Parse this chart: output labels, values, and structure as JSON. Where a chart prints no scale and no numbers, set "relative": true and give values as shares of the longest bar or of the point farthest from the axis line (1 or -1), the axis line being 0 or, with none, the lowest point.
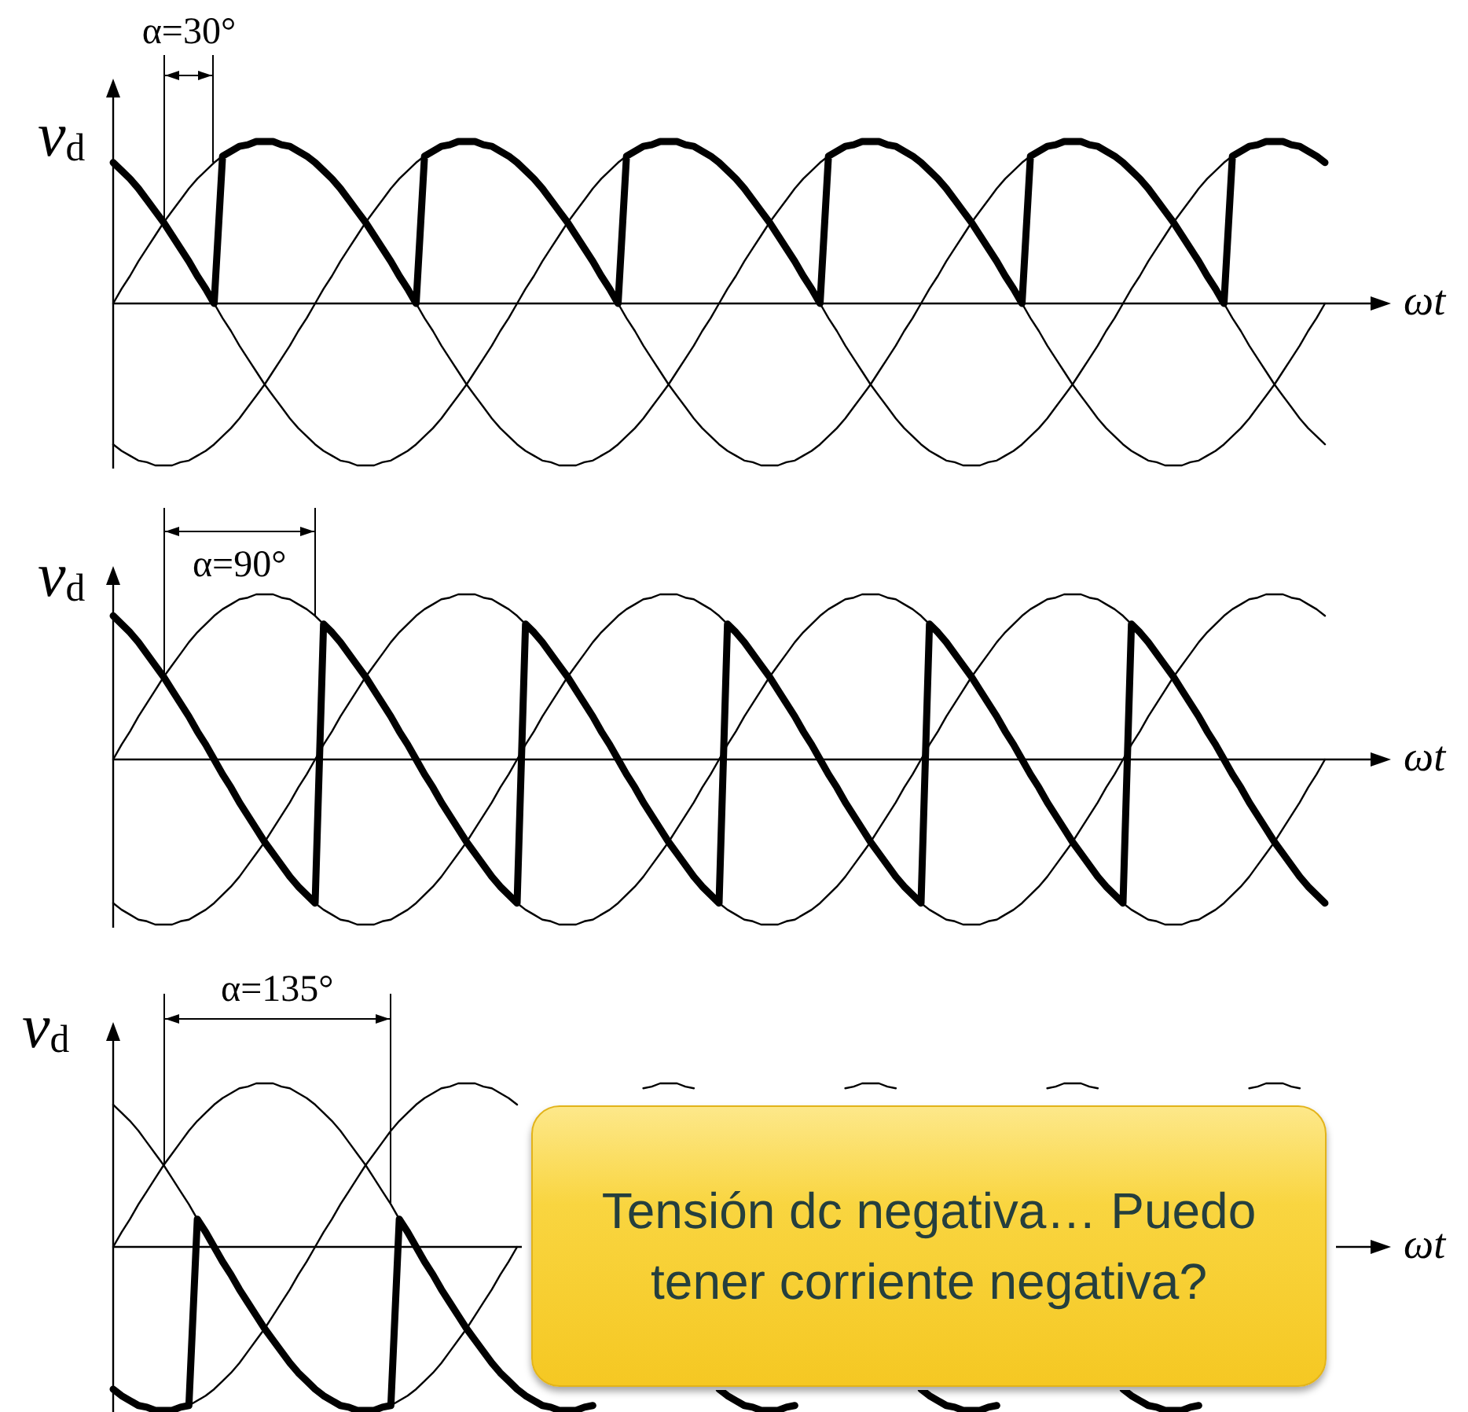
{
  "chart_data": [
    {
      "type": "line",
      "relative": true,
      "tick_labels": false,
      "xlabel": "ωt",
      "ylabel": "v$_{d}$",
      "annotations": [
        "α=30°"
      ],
      "categories": [
        null,
        null,
        null,
        null,
        null,
        null,
        null,
        null,
        null,
        null,
        null,
        null,
        null,
        null,
        null,
        null,
        null,
        null,
        null,
        null,
        null,
        null,
        null,
        null,
        null,
        null,
        null,
        null,
        null,
        null,
        null,
        null,
        null,
        null,
        null,
        null,
        null,
        null,
        null,
        null,
        null,
        null,
        null,
        null,
        null,
        null,
        null,
        null,
        null,
        null,
        null,
        null,
        null,
        null,
        null,
        null,
        null,
        null,
        null,
        null,
        null,
        null,
        null,
        null,
        null,
        null,
        null,
        null,
        null,
        null,
        null,
        null,
        null,
        null,
        null,
        null,
        null,
        null,
        null,
        null,
        null,
        null,
        null,
        null,
        null,
        null,
        null,
        null,
        null,
        null,
        null,
        null,
        null,
        null,
        null,
        null,
        null,
        null,
        null,
        null,
        null,
        null,
        null,
        null,
        null,
        null,
        null,
        null,
        null,
        null,
        null,
        null,
        null,
        null,
        null,
        null,
        null,
        null,
        null,
        null,
        null,
        null,
        null,
        null,
        null,
        null,
        null,
        null,
        null,
        null,
        null,
        null,
        null,
        null,
        null,
        null,
        null,
        null,
        null,
        null,
        null,
        null,
        null,
        null,
        null
      ],
      "series": [
        {
          "color": "#000000",
          "values": [
            0.87,
            0.82,
            0.77,
            0.71,
            0.64,
            0.57,
            0.5,
            0.42,
            0.34,
            0.26,
            0.17,
            0.09,
            0,
            0.91,
            0.94,
            0.97,
            0.98,
            1,
            1,
            1,
            0.98,
            0.97,
            0.94,
            0.91,
            0.87,
            0.82,
            0.77,
            0.71,
            0.64,
            0.57,
            0.5,
            0.42,
            0.34,
            0.26,
            0.17,
            0.09,
            0,
            0.91,
            0.94,
            0.97,
            0.98,
            1,
            1,
            1,
            0.98,
            0.97,
            0.94,
            0.91,
            0.87,
            0.82,
            0.77,
            0.71,
            0.64,
            0.57,
            0.5,
            0.42,
            0.34,
            0.26,
            0.17,
            0.09,
            0,
            0.91,
            0.94,
            0.97,
            0.98,
            1,
            1,
            1,
            0.98,
            0.97,
            0.94,
            0.91,
            0.87,
            0.82,
            0.77,
            0.71,
            0.64,
            0.57,
            0.5,
            0.42,
            0.34,
            0.26,
            0.17,
            0.09,
            0,
            0.91,
            0.94,
            0.97,
            0.98,
            1,
            1,
            1,
            0.98,
            0.97,
            0.94,
            0.91,
            0.87,
            0.82,
            0.77,
            0.71,
            0.64,
            0.57,
            0.5,
            0.42,
            0.34,
            0.26,
            0.17,
            0.09,
            0,
            0.91,
            0.94,
            0.97,
            0.98,
            1,
            1,
            1,
            0.98,
            0.97,
            0.94,
            0.91,
            0.87,
            0.82,
            0.77,
            0.71,
            0.64,
            0.57,
            0.5,
            0.42,
            0.34,
            0.26,
            0.17,
            0.09,
            0,
            0.91,
            0.94,
            0.97,
            0.98,
            1,
            1,
            1,
            0.98,
            0.97,
            0.94,
            0.91,
            0.87
          ]
        },
        {
          "color": "#000000",
          "values": [
            0,
            0.09,
            0.17,
            0.26,
            0.34,
            0.42,
            0.5,
            0.57,
            0.64,
            0.71,
            0.77,
            0.82,
            0.87,
            0.91,
            0.94,
            0.97,
            0.98,
            1,
            1,
            1,
            0.98,
            0.97,
            0.94,
            0.91,
            0.87,
            0.82,
            0.77,
            0.71,
            0.64,
            0.57,
            0.5,
            0.42,
            0.34,
            0.26,
            0.17,
            0.09,
            0,
            -0.09,
            -0.17,
            -0.26,
            -0.34,
            -0.42,
            -0.5,
            -0.57,
            -0.64,
            -0.71,
            -0.77,
            -0.82,
            -0.87,
            -0.91,
            -0.94,
            -0.97,
            -0.98,
            -1,
            -1,
            -1,
            -0.98,
            -0.97,
            -0.94,
            -0.91,
            -0.87,
            -0.82,
            -0.77,
            -0.71,
            -0.64,
            -0.57,
            -0.5,
            -0.42,
            -0.34,
            -0.26,
            -0.17,
            -0.09,
            0,
            0.09,
            0.17,
            0.26,
            0.34,
            0.42,
            0.5,
            0.57,
            0.64,
            0.71,
            0.77,
            0.82,
            0.87,
            0.91,
            0.94,
            0.97,
            0.98,
            1,
            1,
            1,
            0.98,
            0.97,
            0.94,
            0.91,
            0.87,
            0.82,
            0.77,
            0.71,
            0.64,
            0.57,
            0.5,
            0.42,
            0.34,
            0.26,
            0.17,
            0.09,
            0,
            -0.09,
            -0.17,
            -0.26,
            -0.34,
            -0.42,
            -0.5,
            -0.57,
            -0.64,
            -0.71,
            -0.77,
            -0.82,
            -0.87,
            -0.91,
            -0.94,
            -0.97,
            -0.98,
            -1,
            -1,
            -1,
            -0.98,
            -0.97,
            -0.94,
            -0.91,
            -0.87,
            -0.82,
            -0.77,
            -0.71,
            -0.64,
            -0.57,
            -0.5,
            -0.42,
            -0.34,
            -0.26,
            -0.17,
            -0.09,
            0
          ]
        },
        {
          "color": "#000000",
          "values": [
            -0.87,
            -0.91,
            -0.94,
            -0.97,
            -0.98,
            -1,
            -1,
            -1,
            -0.98,
            -0.97,
            -0.94,
            -0.91,
            -0.87,
            -0.82,
            -0.77,
            -0.71,
            -0.64,
            -0.57,
            -0.5,
            -0.42,
            -0.34,
            -0.26,
            -0.17,
            -0.09,
            0,
            0.09,
            0.17,
            0.26,
            0.34,
            0.42,
            0.5,
            0.57,
            0.64,
            0.71,
            0.77,
            0.82,
            0.87,
            0.91,
            0.94,
            0.97,
            0.98,
            1,
            1,
            1,
            0.98,
            0.97,
            0.94,
            0.91,
            0.87,
            0.82,
            0.77,
            0.71,
            0.64,
            0.57,
            0.5,
            0.42,
            0.34,
            0.26,
            0.17,
            0.09,
            0,
            -0.09,
            -0.17,
            -0.26,
            -0.34,
            -0.42,
            -0.5,
            -0.57,
            -0.64,
            -0.71,
            -0.77,
            -0.82,
            -0.87,
            -0.91,
            -0.94,
            -0.97,
            -0.98,
            -1,
            -1,
            -1,
            -0.98,
            -0.97,
            -0.94,
            -0.91,
            -0.87,
            -0.82,
            -0.77,
            -0.71,
            -0.64,
            -0.57,
            -0.5,
            -0.42,
            -0.34,
            -0.26,
            -0.17,
            -0.09,
            0,
            0.09,
            0.17,
            0.26,
            0.34,
            0.42,
            0.5,
            0.57,
            0.64,
            0.71,
            0.77,
            0.82,
            0.87,
            0.91,
            0.94,
            0.97,
            0.98,
            1,
            1,
            1,
            0.98,
            0.97,
            0.94,
            0.91,
            0.87,
            0.82,
            0.77,
            0.71,
            0.64,
            0.57,
            0.5,
            0.42,
            0.34,
            0.26,
            0.17,
            0.09,
            0,
            -0.09,
            -0.17,
            -0.26,
            -0.34,
            -0.42,
            -0.5,
            -0.57,
            -0.64,
            -0.71,
            -0.77,
            -0.82,
            -0.87
          ]
        },
        {
          "color": "#000000",
          "values": [
            0.87,
            0.82,
            0.77,
            0.71,
            0.64,
            0.57,
            0.5,
            0.42,
            0.34,
            0.26,
            0.17,
            0.09,
            0,
            -0.09,
            -0.17,
            -0.26,
            -0.34,
            -0.42,
            -0.5,
            -0.57,
            -0.64,
            -0.71,
            -0.77,
            -0.82,
            -0.87,
            -0.91,
            -0.94,
            -0.97,
            -0.98,
            -1,
            -1,
            -1,
            -0.98,
            -0.97,
            -0.94,
            -0.91,
            -0.87,
            -0.82,
            -0.77,
            -0.71,
            -0.64,
            -0.57,
            -0.5,
            -0.42,
            -0.34,
            -0.26,
            -0.17,
            -0.09,
            0,
            0.09,
            0.17,
            0.26,
            0.34,
            0.42,
            0.5,
            0.57,
            0.64,
            0.71,
            0.77,
            0.82,
            0.87,
            0.91,
            0.94,
            0.97,
            0.98,
            1,
            1,
            1,
            0.98,
            0.97,
            0.94,
            0.91,
            0.87,
            0.82,
            0.77,
            0.71,
            0.64,
            0.57,
            0.5,
            0.42,
            0.34,
            0.26,
            0.17,
            0.09,
            0,
            -0.09,
            -0.17,
            -0.26,
            -0.34,
            -0.42,
            -0.5,
            -0.57,
            -0.64,
            -0.71,
            -0.77,
            -0.82,
            -0.87,
            -0.91,
            -0.94,
            -0.97,
            -0.98,
            -1,
            -1,
            -1,
            -0.98,
            -0.97,
            -0.94,
            -0.91,
            -0.87,
            -0.82,
            -0.77,
            -0.71,
            -0.64,
            -0.57,
            -0.5,
            -0.42,
            -0.34,
            -0.26,
            -0.17,
            -0.09,
            0,
            0.09,
            0.17,
            0.26,
            0.34,
            0.42,
            0.5,
            0.57,
            0.64,
            0.71,
            0.77,
            0.82,
            0.87,
            0.91,
            0.94,
            0.97,
            0.98,
            1,
            1,
            1,
            0.98,
            0.97,
            0.94,
            0.91,
            0.87
          ]
        }
      ]
    },
    {
      "type": "line",
      "relative": true,
      "tick_labels": false,
      "xlabel": "ωt",
      "ylabel": "v$_{d}$",
      "annotations": [
        "α=90°"
      ],
      "categories": [
        null,
        null,
        null,
        null,
        null,
        null,
        null,
        null,
        null,
        null,
        null,
        null,
        null,
        null,
        null,
        null,
        null,
        null,
        null,
        null,
        null,
        null,
        null,
        null,
        null,
        null,
        null,
        null,
        null,
        null,
        null,
        null,
        null,
        null,
        null,
        null,
        null,
        null,
        null,
        null,
        null,
        null,
        null,
        null,
        null,
        null,
        null,
        null,
        null,
        null,
        null,
        null,
        null,
        null,
        null,
        null,
        null,
        null,
        null,
        null,
        null,
        null,
        null,
        null,
        null,
        null,
        null,
        null,
        null,
        null,
        null,
        null,
        null,
        null,
        null,
        null,
        null,
        null,
        null,
        null,
        null,
        null,
        null,
        null,
        null,
        null,
        null,
        null,
        null,
        null,
        null,
        null,
        null,
        null,
        null,
        null,
        null,
        null,
        null,
        null,
        null,
        null,
        null,
        null,
        null,
        null,
        null,
        null,
        null,
        null,
        null,
        null,
        null,
        null,
        null,
        null,
        null,
        null,
        null,
        null,
        null,
        null,
        null,
        null,
        null,
        null,
        null,
        null,
        null,
        null,
        null,
        null,
        null,
        null,
        null,
        null,
        null,
        null,
        null,
        null,
        null,
        null,
        null,
        null,
        null
      ],
      "series": [
        {
          "color": "#000000",
          "values": [
            0.87,
            0.82,
            0.77,
            0.71,
            0.64,
            0.57,
            0.5,
            0.42,
            0.34,
            0.26,
            0.17,
            0.09,
            0,
            -0.09,
            -0.17,
            -0.26,
            -0.34,
            -0.42,
            -0.5,
            -0.57,
            -0.64,
            -0.71,
            -0.77,
            -0.82,
            -0.87,
            0.82,
            0.77,
            0.71,
            0.64,
            0.57,
            0.5,
            0.42,
            0.34,
            0.26,
            0.17,
            0.09,
            0,
            -0.09,
            -0.17,
            -0.26,
            -0.34,
            -0.42,
            -0.5,
            -0.57,
            -0.64,
            -0.71,
            -0.77,
            -0.82,
            -0.87,
            0.82,
            0.77,
            0.71,
            0.64,
            0.57,
            0.5,
            0.42,
            0.34,
            0.26,
            0.17,
            0.09,
            0,
            -0.09,
            -0.17,
            -0.26,
            -0.34,
            -0.42,
            -0.5,
            -0.57,
            -0.64,
            -0.71,
            -0.77,
            -0.82,
            -0.87,
            0.82,
            0.77,
            0.71,
            0.64,
            0.57,
            0.5,
            0.42,
            0.34,
            0.26,
            0.17,
            0.09,
            0,
            -0.09,
            -0.17,
            -0.26,
            -0.34,
            -0.42,
            -0.5,
            -0.57,
            -0.64,
            -0.71,
            -0.77,
            -0.82,
            -0.87,
            0.82,
            0.77,
            0.71,
            0.64,
            0.57,
            0.5,
            0.42,
            0.34,
            0.26,
            0.17,
            0.09,
            0,
            -0.09,
            -0.17,
            -0.26,
            -0.34,
            -0.42,
            -0.5,
            -0.57,
            -0.64,
            -0.71,
            -0.77,
            -0.82,
            -0.87,
            0.82,
            0.77,
            0.71,
            0.64,
            0.57,
            0.5,
            0.42,
            0.34,
            0.26,
            0.17,
            0.09,
            0,
            -0.09,
            -0.17,
            -0.26,
            -0.34,
            -0.42,
            -0.5,
            -0.57,
            -0.64,
            -0.71,
            -0.77,
            -0.82,
            -0.87
          ]
        },
        {
          "color": "#000000",
          "values": [
            0,
            0.09,
            0.17,
            0.26,
            0.34,
            0.42,
            0.5,
            0.57,
            0.64,
            0.71,
            0.77,
            0.82,
            0.87,
            0.91,
            0.94,
            0.97,
            0.98,
            1,
            1,
            1,
            0.98,
            0.97,
            0.94,
            0.91,
            0.87,
            0.82,
            0.77,
            0.71,
            0.64,
            0.57,
            0.5,
            0.42,
            0.34,
            0.26,
            0.17,
            0.09,
            0,
            -0.09,
            -0.17,
            -0.26,
            -0.34,
            -0.42,
            -0.5,
            -0.57,
            -0.64,
            -0.71,
            -0.77,
            -0.82,
            -0.87,
            -0.91,
            -0.94,
            -0.97,
            -0.98,
            -1,
            -1,
            -1,
            -0.98,
            -0.97,
            -0.94,
            -0.91,
            -0.87,
            -0.82,
            -0.77,
            -0.71,
            -0.64,
            -0.57,
            -0.5,
            -0.42,
            -0.34,
            -0.26,
            -0.17,
            -0.09,
            0,
            0.09,
            0.17,
            0.26,
            0.34,
            0.42,
            0.5,
            0.57,
            0.64,
            0.71,
            0.77,
            0.82,
            0.87,
            0.91,
            0.94,
            0.97,
            0.98,
            1,
            1,
            1,
            0.98,
            0.97,
            0.94,
            0.91,
            0.87,
            0.82,
            0.77,
            0.71,
            0.64,
            0.57,
            0.5,
            0.42,
            0.34,
            0.26,
            0.17,
            0.09,
            0,
            -0.09,
            -0.17,
            -0.26,
            -0.34,
            -0.42,
            -0.5,
            -0.57,
            -0.64,
            -0.71,
            -0.77,
            -0.82,
            -0.87,
            -0.91,
            -0.94,
            -0.97,
            -0.98,
            -1,
            -1,
            -1,
            -0.98,
            -0.97,
            -0.94,
            -0.91,
            -0.87,
            -0.82,
            -0.77,
            -0.71,
            -0.64,
            -0.57,
            -0.5,
            -0.42,
            -0.34,
            -0.26,
            -0.17,
            -0.09,
            0
          ]
        },
        {
          "color": "#000000",
          "values": [
            -0.87,
            -0.91,
            -0.94,
            -0.97,
            -0.98,
            -1,
            -1,
            -1,
            -0.98,
            -0.97,
            -0.94,
            -0.91,
            -0.87,
            -0.82,
            -0.77,
            -0.71,
            -0.64,
            -0.57,
            -0.5,
            -0.42,
            -0.34,
            -0.26,
            -0.17,
            -0.09,
            0,
            0.09,
            0.17,
            0.26,
            0.34,
            0.42,
            0.5,
            0.57,
            0.64,
            0.71,
            0.77,
            0.82,
            0.87,
            0.91,
            0.94,
            0.97,
            0.98,
            1,
            1,
            1,
            0.98,
            0.97,
            0.94,
            0.91,
            0.87,
            0.82,
            0.77,
            0.71,
            0.64,
            0.57,
            0.5,
            0.42,
            0.34,
            0.26,
            0.17,
            0.09,
            0,
            -0.09,
            -0.17,
            -0.26,
            -0.34,
            -0.42,
            -0.5,
            -0.57,
            -0.64,
            -0.71,
            -0.77,
            -0.82,
            -0.87,
            -0.91,
            -0.94,
            -0.97,
            -0.98,
            -1,
            -1,
            -1,
            -0.98,
            -0.97,
            -0.94,
            -0.91,
            -0.87,
            -0.82,
            -0.77,
            -0.71,
            -0.64,
            -0.57,
            -0.5,
            -0.42,
            -0.34,
            -0.26,
            -0.17,
            -0.09,
            0,
            0.09,
            0.17,
            0.26,
            0.34,
            0.42,
            0.5,
            0.57,
            0.64,
            0.71,
            0.77,
            0.82,
            0.87,
            0.91,
            0.94,
            0.97,
            0.98,
            1,
            1,
            1,
            0.98,
            0.97,
            0.94,
            0.91,
            0.87,
            0.82,
            0.77,
            0.71,
            0.64,
            0.57,
            0.5,
            0.42,
            0.34,
            0.26,
            0.17,
            0.09,
            0,
            -0.09,
            -0.17,
            -0.26,
            -0.34,
            -0.42,
            -0.5,
            -0.57,
            -0.64,
            -0.71,
            -0.77,
            -0.82,
            -0.87
          ]
        },
        {
          "color": "#000000",
          "values": [
            0.87,
            0.82,
            0.77,
            0.71,
            0.64,
            0.57,
            0.5,
            0.42,
            0.34,
            0.26,
            0.17,
            0.09,
            0,
            -0.09,
            -0.17,
            -0.26,
            -0.34,
            -0.42,
            -0.5,
            -0.57,
            -0.64,
            -0.71,
            -0.77,
            -0.82,
            -0.87,
            -0.91,
            -0.94,
            -0.97,
            -0.98,
            -1,
            -1,
            -1,
            -0.98,
            -0.97,
            -0.94,
            -0.91,
            -0.87,
            -0.82,
            -0.77,
            -0.71,
            -0.64,
            -0.57,
            -0.5,
            -0.42,
            -0.34,
            -0.26,
            -0.17,
            -0.09,
            0,
            0.09,
            0.17,
            0.26,
            0.34,
            0.42,
            0.5,
            0.57,
            0.64,
            0.71,
            0.77,
            0.82,
            0.87,
            0.91,
            0.94,
            0.97,
            0.98,
            1,
            1,
            1,
            0.98,
            0.97,
            0.94,
            0.91,
            0.87,
            0.82,
            0.77,
            0.71,
            0.64,
            0.57,
            0.5,
            0.42,
            0.34,
            0.26,
            0.17,
            0.09,
            0,
            -0.09,
            -0.17,
            -0.26,
            -0.34,
            -0.42,
            -0.5,
            -0.57,
            -0.64,
            -0.71,
            -0.77,
            -0.82,
            -0.87,
            -0.91,
            -0.94,
            -0.97,
            -0.98,
            -1,
            -1,
            -1,
            -0.98,
            -0.97,
            -0.94,
            -0.91,
            -0.87,
            -0.82,
            -0.77,
            -0.71,
            -0.64,
            -0.57,
            -0.5,
            -0.42,
            -0.34,
            -0.26,
            -0.17,
            -0.09,
            0,
            0.09,
            0.17,
            0.26,
            0.34,
            0.42,
            0.5,
            0.57,
            0.64,
            0.71,
            0.77,
            0.82,
            0.87,
            0.91,
            0.94,
            0.97,
            0.98,
            1,
            1,
            1,
            0.98,
            0.97,
            0.94,
            0.91,
            0.87
          ]
        }
      ]
    },
    {
      "type": "line",
      "relative": true,
      "tick_labels": false,
      "xlabel": "ωt",
      "ylabel": "v$_{d}$",
      "annotations": [
        "α=135°",
        "Tensión dc negativa… Puedo tener corriente negativa?"
      ],
      "categories": [
        null,
        null,
        null,
        null,
        null,
        null,
        null,
        null,
        null,
        null,
        null,
        null,
        null,
        null,
        null,
        null,
        null,
        null,
        null,
        null,
        null,
        null,
        null,
        null,
        null,
        null,
        null,
        null,
        null,
        null,
        null,
        null,
        null,
        null,
        null,
        null,
        null,
        null,
        null,
        null,
        null,
        null,
        null,
        null,
        null,
        null,
        null,
        null,
        null,
        null,
        null,
        null,
        null,
        null,
        null,
        null,
        null,
        null,
        null,
        null,
        null,
        null,
        null,
        null,
        null,
        null,
        null,
        null,
        null,
        null,
        null,
        null,
        null,
        null,
        null,
        null,
        null,
        null,
        null,
        null,
        null,
        null,
        null,
        null,
        null,
        null,
        null,
        null,
        null,
        null,
        null,
        null,
        null,
        null,
        null,
        null,
        null,
        null,
        null,
        null,
        null,
        null,
        null,
        null,
        null,
        null,
        null,
        null,
        null,
        null,
        null,
        null,
        null,
        null,
        null,
        null,
        null,
        null,
        null,
        null,
        null,
        null,
        null,
        null,
        null,
        null,
        null,
        null,
        null,
        null,
        null,
        null,
        null,
        null,
        null,
        null,
        null,
        null,
        null,
        null,
        null,
        null,
        null,
        null,
        null
      ],
      "series": [
        {
          "color": "#000000",
          "values": [
            -0.87,
            -0.91,
            -0.94,
            -0.97,
            -0.98,
            -1,
            -1,
            -1,
            -0.98,
            -0.97,
            0.17,
            0.09,
            0,
            -0.09,
            -0.17,
            -0.26,
            -0.34,
            -0.42,
            -0.5,
            -0.57,
            -0.64,
            -0.71,
            -0.77,
            -0.82,
            -0.87,
            -0.91,
            -0.94,
            -0.97,
            -0.98,
            -1,
            -1,
            -1,
            -0.98,
            -0.97,
            0.17,
            0.09,
            0,
            -0.09,
            -0.17,
            -0.26,
            -0.34,
            -0.42,
            -0.5,
            -0.57,
            -0.64,
            -0.71,
            -0.77,
            -0.82,
            -0.87,
            -0.91,
            -0.94,
            -0.97,
            -0.98,
            -1,
            -1,
            -1,
            -0.98,
            -0.97,
            null,
            null,
            null,
            null,
            null,
            null,
            null,
            null,
            null,
            null,
            null,
            null,
            null,
            null,
            -0.87,
            -0.91,
            -0.94,
            -0.97,
            -0.98,
            -1,
            -1,
            -1,
            -0.98,
            -0.97,
            null,
            null,
            null,
            null,
            null,
            null,
            null,
            null,
            null,
            null,
            null,
            null,
            null,
            null,
            -0.87,
            -0.91,
            -0.94,
            -0.97,
            -0.98,
            -1,
            -1,
            -1,
            -0.98,
            -0.97,
            null,
            null,
            null,
            null,
            null,
            null,
            null,
            null,
            null,
            null,
            null,
            null,
            null,
            null,
            -0.87,
            -0.91,
            -0.94,
            -0.97,
            -0.98,
            -1,
            -1,
            -1,
            -0.98,
            -0.97,
            null,
            null,
            null,
            null,
            null,
            null,
            null,
            null,
            null,
            null,
            null,
            null,
            null,
            null,
            null
          ]
        },
        {
          "color": "#000000",
          "values": [
            0,
            0.09,
            0.17,
            0.26,
            0.34,
            0.42,
            0.5,
            0.57,
            0.64,
            0.71,
            0.77,
            0.82,
            0.87,
            0.91,
            0.94,
            0.97,
            0.98,
            1,
            1,
            1,
            0.98,
            0.97,
            0.94,
            0.91,
            0.87,
            0.82,
            0.77,
            0.71,
            0.64,
            0.57,
            0.5,
            0.42,
            0.34,
            0.26,
            0.17,
            0.09,
            0,
            -0.09,
            -0.17,
            -0.26,
            -0.34,
            -0.42,
            -0.5,
            -0.57,
            -0.64,
            -0.71,
            -0.77,
            -0.82,
            -0.87,
            -0.91,
            -0.94,
            -0.97,
            -0.98,
            -1,
            -1,
            -1,
            -0.98,
            -0.97,
            null,
            null,
            null,
            null,
            null,
            null,
            null,
            null,
            null,
            null,
            null,
            null,
            null,
            null,
            null,
            null,
            null,
            null,
            null,
            null,
            null,
            null,
            null,
            null,
            null,
            null,
            null,
            null,
            null,
            0.97,
            0.98,
            1,
            1,
            1,
            0.98,
            0.97,
            null,
            null,
            null,
            null,
            null,
            null,
            null,
            null,
            null,
            null,
            null,
            null,
            null,
            null,
            null,
            null,
            null,
            null,
            null,
            null,
            null,
            null,
            null,
            null,
            null,
            null,
            null,
            null,
            null,
            null,
            null,
            null,
            null,
            null,
            null,
            null,
            null,
            null,
            null,
            null,
            null,
            null,
            null,
            null,
            null,
            null,
            null,
            null,
            null,
            null,
            null
          ]
        },
        {
          "color": "#000000",
          "values": [
            -0.87,
            -0.91,
            -0.94,
            -0.97,
            -0.98,
            -1,
            -1,
            -1,
            -0.98,
            -0.97,
            -0.94,
            -0.91,
            -0.87,
            -0.82,
            -0.77,
            -0.71,
            -0.64,
            -0.57,
            -0.5,
            -0.42,
            -0.34,
            -0.26,
            -0.17,
            -0.09,
            0,
            0.09,
            0.17,
            0.26,
            0.34,
            0.42,
            0.5,
            0.57,
            0.64,
            0.71,
            0.77,
            0.82,
            0.87,
            0.91,
            0.94,
            0.97,
            0.98,
            1,
            1,
            1,
            0.98,
            0.97,
            0.94,
            0.91,
            0.87,
            null,
            null,
            null,
            null,
            null,
            null,
            null,
            null,
            null,
            null,
            null,
            null,
            null,
            null,
            null,
            null,
            null,
            null,
            null,
            null,
            null,
            null,
            null,
            null,
            null,
            null,
            null,
            null,
            null,
            null,
            null,
            null,
            null,
            null,
            null,
            null,
            null,
            null,
            null,
            null,
            null,
            null,
            null,
            null,
            null,
            null,
            null,
            null,
            null,
            null,
            null,
            null,
            null,
            null,
            null,
            null,
            null,
            null,
            null,
            null,
            null,
            null,
            0.97,
            0.98,
            1,
            1,
            1,
            0.98,
            0.97,
            null,
            null,
            null,
            null,
            null,
            null,
            null,
            null,
            null,
            null,
            null,
            null,
            null,
            null,
            null,
            null,
            null,
            null,
            null,
            null,
            null,
            null,
            null,
            null,
            null,
            null,
            null
          ]
        },
        {
          "color": "#000000",
          "values": [
            0.87,
            0.82,
            0.77,
            0.71,
            0.64,
            0.57,
            0.5,
            0.42,
            0.34,
            0.26,
            0.17,
            0.09,
            0,
            -0.09,
            -0.17,
            -0.26,
            -0.34,
            -0.42,
            -0.5,
            -0.57,
            -0.64,
            -0.71,
            -0.77,
            -0.82,
            -0.87,
            -0.91,
            -0.94,
            -0.97,
            -0.98,
            -1,
            -1,
            -1,
            -0.98,
            -0.97,
            -0.94,
            -0.91,
            -0.87,
            -0.82,
            -0.77,
            -0.71,
            -0.64,
            -0.57,
            -0.5,
            -0.42,
            -0.34,
            -0.26,
            -0.17,
            -0.09,
            0,
            null,
            null,
            null,
            null,
            null,
            null,
            null,
            null,
            null,
            null,
            null,
            null,
            null,
            null,
            0.97,
            0.98,
            1,
            1,
            1,
            0.98,
            0.97,
            null,
            null,
            null,
            null,
            null,
            null,
            null,
            null,
            null,
            null,
            null,
            null,
            null,
            null,
            null,
            null,
            null,
            null,
            null,
            null,
            null,
            null,
            null,
            null,
            null,
            null,
            null,
            null,
            null,
            null,
            null,
            null,
            null,
            null,
            null,
            null,
            null,
            null,
            null,
            null,
            null,
            null,
            null,
            null,
            null,
            null,
            null,
            null,
            null,
            null,
            null,
            null,
            null,
            null,
            null,
            null,
            null,
            null,
            null,
            null,
            null,
            null,
            null,
            null,
            null,
            0.97,
            0.98,
            1,
            1,
            1,
            0.98,
            0.97,
            null,
            null,
            null
          ]
        }
      ]
    }
  ]
}
